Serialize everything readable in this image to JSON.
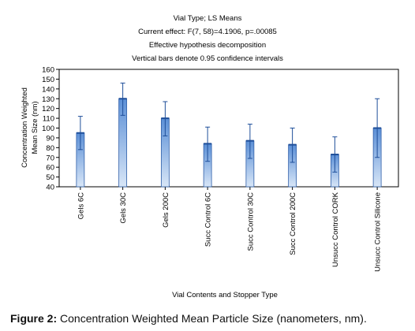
{
  "caption": {
    "prefix": "Figure 2:",
    "text": "Concentration Weighted Mean Particle Size (nanometers, nm)."
  },
  "colors": {
    "bar_fill_top": "#5b8fd6",
    "bar_fill_bottom": "#d8e6f7",
    "bar_edge": "#2f5fa8",
    "mean_line": "#1f4f9a",
    "error_bar": "#1f4f9a"
  },
  "chart_data": {
    "type": "bar",
    "title_lines": [
      "Vial Type; LS Means",
      "Current effect: F(7, 58)=4.1906, p=.00085",
      "Effective hypothesis decomposition",
      "Vertical bars denote 0.95 confidence intervals"
    ],
    "xlabel": "Vial Contents and Stopper Type",
    "ylabel": "Concentration Weighted Mean Size (nm)",
    "ylabel_lines": [
      "Concentration Weighted",
      "Mean Size (nm)"
    ],
    "ylim": [
      40,
      160
    ],
    "yticks": [
      40,
      50,
      60,
      70,
      80,
      90,
      100,
      110,
      120,
      130,
      140,
      150,
      160
    ],
    "grid": false,
    "categories": [
      "Gels 6C",
      "Gels 30C",
      "Gels 200C",
      "Succ Control 6C",
      "Succ Control 30C",
      "Succ Control 200C",
      "Unsucc Control CORK",
      "Unsucc Control Silicone"
    ],
    "values": [
      95,
      130,
      110,
      84,
      87,
      83,
      73,
      100
    ],
    "ci_lower": [
      78,
      113,
      92,
      66,
      69,
      65,
      55,
      70
    ],
    "ci_upper": [
      112,
      146,
      127,
      101,
      104,
      100,
      91,
      130
    ]
  }
}
